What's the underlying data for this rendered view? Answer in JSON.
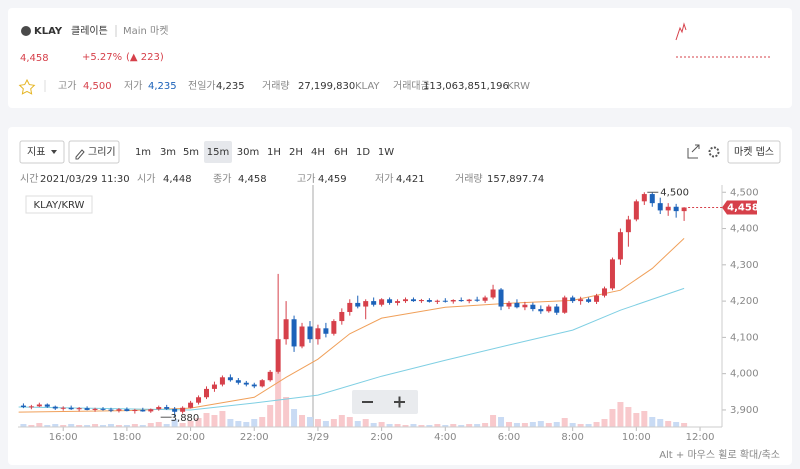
{
  "header": {
    "symbol": "KLAY",
    "name": "클레이튼",
    "market": "Main 마켓",
    "price": "4,458",
    "change_rate": "+5.27%",
    "change": "(▲ 223)",
    "stats": [
      {
        "label": "고가",
        "value": "4,500"
      },
      {
        "label": "저가",
        "value": "4,235"
      },
      {
        "label": "전일가",
        "value": "4,235"
      },
      {
        "label": "거래량",
        "value": "27,199,830",
        "unit": "KLAY"
      },
      {
        "label": "거래대금",
        "value": "113,063,851,196",
        "unit": "KRW"
      }
    ]
  },
  "toolbar": {
    "indicator": "지표",
    "draw": "그리기",
    "intervals": [
      "1m",
      "3m",
      "5m",
      "15m",
      "30m",
      "1H",
      "2H",
      "4H",
      "6H",
      "1D",
      "1W"
    ],
    "selected": "15m",
    "depth": "마켓 뎁스"
  },
  "ohlc_info": [
    {
      "label": "시간",
      "value": "2021/03/29 11:30"
    },
    {
      "label": "시가",
      "value": "4,448"
    },
    {
      "label": "종가",
      "value": "4,458"
    },
    {
      "label": "고가",
      "value": "4,459"
    },
    {
      "label": "저가",
      "value": "4,421"
    },
    {
      "label": "거래량",
      "value": "157,897.74"
    }
  ],
  "hint": "Alt + 마우스 휠로 확대/축소",
  "chart_data": {
    "type": "candlestick",
    "pair": "KLAY/KRW",
    "up_color": "#d6404a",
    "down_color": "#1c62b9",
    "x": [
      14.75,
      15,
      15.25,
      15.5,
      15.75,
      16,
      16.25,
      16.5,
      16.75,
      17,
      17.25,
      17.5,
      17.75,
      18,
      18.25,
      18.5,
      18.75,
      19,
      19.25,
      19.5,
      19.75,
      20,
      20.25,
      20.5,
      20.75,
      21,
      21.25,
      21.5,
      21.75,
      22,
      22.25,
      22.5,
      22.75,
      23,
      23.25,
      23.5,
      23.75,
      24,
      24.25,
      24.5,
      24.75,
      25,
      25.25,
      25.5,
      25.75,
      26,
      26.25,
      26.5,
      26.75,
      27,
      27.25,
      27.5,
      27.75,
      28,
      28.25,
      28.5,
      28.75,
      29,
      29.25,
      29.5,
      29.75,
      30,
      30.25,
      30.5,
      30.75,
      31,
      31.25,
      31.5,
      31.75,
      32,
      32.25,
      32.5,
      32.75,
      33,
      33.25,
      33.5,
      33.75,
      34,
      34.25,
      34.5,
      34.75,
      35,
      35.25,
      35.5
    ],
    "open": [
      3912,
      3908,
      3910,
      3915,
      3909,
      3904,
      3906,
      3902,
      3905,
      3900,
      3903,
      3901,
      3898,
      3902,
      3897,
      3900,
      3896,
      3902,
      3908,
      3903,
      3895,
      3906,
      3920,
      3935,
      3958,
      3970,
      3990,
      3982,
      3975,
      3970,
      3965,
      3982,
      4005,
      4095,
      4150,
      4075,
      4130,
      4095,
      4125,
      4110,
      4145,
      4170,
      4195,
      4185,
      4200,
      4190,
      4205,
      4195,
      4200,
      4205,
      4200,
      4203,
      4198,
      4201,
      4199,
      4203,
      4200,
      4204,
      4201,
      4210,
      4232,
      4185,
      4195,
      4183,
      4190,
      4178,
      4172,
      4185,
      4168,
      4210,
      4200,
      4205,
      4198,
      4215,
      4235,
      4315,
      4390,
      4425,
      4475,
      4495,
      4470,
      4450,
      4460,
      4448
    ],
    "high": [
      3918,
      3914,
      3920,
      3918,
      3912,
      3910,
      3912,
      3908,
      3910,
      3906,
      3908,
      3906,
      3905,
      3907,
      3903,
      3906,
      3904,
      3912,
      3914,
      3908,
      3910,
      3925,
      3940,
      3965,
      3978,
      3995,
      3998,
      3988,
      3980,
      3975,
      3985,
      4010,
      4275,
      4200,
      4160,
      4140,
      4145,
      4135,
      4140,
      4150,
      4180,
      4205,
      4215,
      4205,
      4210,
      4208,
      4210,
      4205,
      4210,
      4210,
      4206,
      4208,
      4204,
      4208,
      4205,
      4210,
      4206,
      4212,
      4215,
      4245,
      4236,
      4200,
      4205,
      4198,
      4196,
      4188,
      4190,
      4192,
      4215,
      4215,
      4212,
      4210,
      4220,
      4240,
      4320,
      4400,
      4435,
      4480,
      4500,
      4500,
      4485,
      4470,
      4468,
      4459
    ],
    "low": [
      3905,
      3902,
      3908,
      3906,
      3900,
      3898,
      3900,
      3896,
      3899,
      3895,
      3898,
      3894,
      3893,
      3896,
      3890,
      3895,
      3892,
      3898,
      3900,
      3880,
      3890,
      3904,
      3915,
      3930,
      3950,
      3965,
      3978,
      3970,
      3965,
      3960,
      3962,
      3978,
      4000,
      4080,
      4060,
      4070,
      4085,
      4080,
      4100,
      4105,
      4135,
      4160,
      4180,
      4150,
      4185,
      4185,
      4190,
      4188,
      4195,
      4198,
      4195,
      4196,
      4192,
      4196,
      4193,
      4198,
      4194,
      4198,
      4195,
      4205,
      4175,
      4178,
      4180,
      4175,
      4172,
      4165,
      4168,
      4162,
      4165,
      4195,
      4190,
      4195,
      4192,
      4210,
      4230,
      4300,
      4350,
      4420,
      4465,
      4460,
      4440,
      4435,
      4430,
      4421
    ],
    "close": [
      3908,
      3910,
      3915,
      3909,
      3904,
      3906,
      3902,
      3905,
      3900,
      3903,
      3901,
      3898,
      3902,
      3897,
      3900,
      3896,
      3902,
      3908,
      3903,
      3895,
      3906,
      3920,
      3935,
      3958,
      3970,
      3990,
      3982,
      3975,
      3970,
      3965,
      3982,
      4005,
      4095,
      4150,
      4075,
      4130,
      4095,
      4125,
      4110,
      4145,
      4170,
      4195,
      4185,
      4200,
      4190,
      4205,
      4195,
      4200,
      4205,
      4200,
      4203,
      4198,
      4201,
      4199,
      4203,
      4200,
      4204,
      4201,
      4210,
      4232,
      4185,
      4195,
      4183,
      4190,
      4178,
      4172,
      4185,
      4168,
      4210,
      4200,
      4205,
      4198,
      4215,
      4235,
      4315,
      4390,
      4425,
      4475,
      4495,
      4470,
      4450,
      4460,
      4448,
      4458
    ],
    "volume": [
      3,
      2,
      4,
      2,
      3,
      2,
      3,
      2,
      2,
      3,
      2,
      3,
      2,
      2,
      3,
      2,
      4,
      5,
      3,
      8,
      4,
      6,
      9,
      14,
      12,
      16,
      8,
      6,
      5,
      8,
      10,
      22,
      55,
      30,
      18,
      12,
      10,
      8,
      6,
      8,
      12,
      10,
      6,
      8,
      4,
      5,
      3,
      3,
      2,
      3,
      2,
      2,
      3,
      2,
      3,
      2,
      3,
      3,
      4,
      12,
      10,
      5,
      4,
      4,
      5,
      6,
      4,
      5,
      9,
      4,
      3,
      3,
      5,
      8,
      18,
      25,
      20,
      14,
      16,
      10,
      8,
      6,
      5,
      4
    ],
    "moving_averages": [
      {
        "color": "#f0a05a",
        "x": [
          14.6,
          18,
          20,
          22,
          23,
          24,
          25,
          26,
          28,
          30,
          32,
          33.5,
          34.5,
          35.5
        ],
        "values": [
          3894,
          3898,
          3905,
          3935,
          3990,
          4040,
          4110,
          4153,
          4183,
          4194,
          4202,
          4230,
          4290,
          4373
        ]
      },
      {
        "color": "#7fcfe3",
        "x": [
          14.6,
          20,
          22,
          24,
          26,
          28,
          30,
          32,
          33.5,
          35.5
        ],
        "values": [
          3908,
          3900,
          3919,
          3941,
          3993,
          4037,
          4079,
          4120,
          4175,
          4235
        ]
      }
    ],
    "xlim": [
      14.58,
      36.69
    ],
    "xticks": [
      {
        "value": 16,
        "label": "16:00"
      },
      {
        "value": 18,
        "label": "18:00"
      },
      {
        "value": 20,
        "label": "20:00"
      },
      {
        "value": 22,
        "label": "22:00"
      },
      {
        "value": 24,
        "label": "3/29"
      },
      {
        "value": 26,
        "label": "2:00"
      },
      {
        "value": 28,
        "label": "4:00"
      },
      {
        "value": 30,
        "label": "6:00"
      },
      {
        "value": 32,
        "label": "8:00"
      },
      {
        "value": 34,
        "label": "10:00"
      },
      {
        "value": 36,
        "label": "12:00"
      }
    ],
    "ylim": [
      3853,
      4520
    ],
    "yticks": [
      {
        "value": 3900,
        "label": "3,900"
      },
      {
        "value": 4000,
        "label": "4,000"
      },
      {
        "value": 4100,
        "label": "4,100"
      },
      {
        "value": 4200,
        "label": "4,200"
      },
      {
        "value": 4300,
        "label": "4,300"
      },
      {
        "value": 4400,
        "label": "4,400"
      },
      {
        "value": 4500,
        "label": "4,500"
      }
    ],
    "last_price": {
      "value": 4458,
      "label": "4,458"
    },
    "high_marker": {
      "value": 4500,
      "label": "4,500"
    },
    "low_marker": {
      "value": 3880,
      "label": "3,880"
    }
  }
}
